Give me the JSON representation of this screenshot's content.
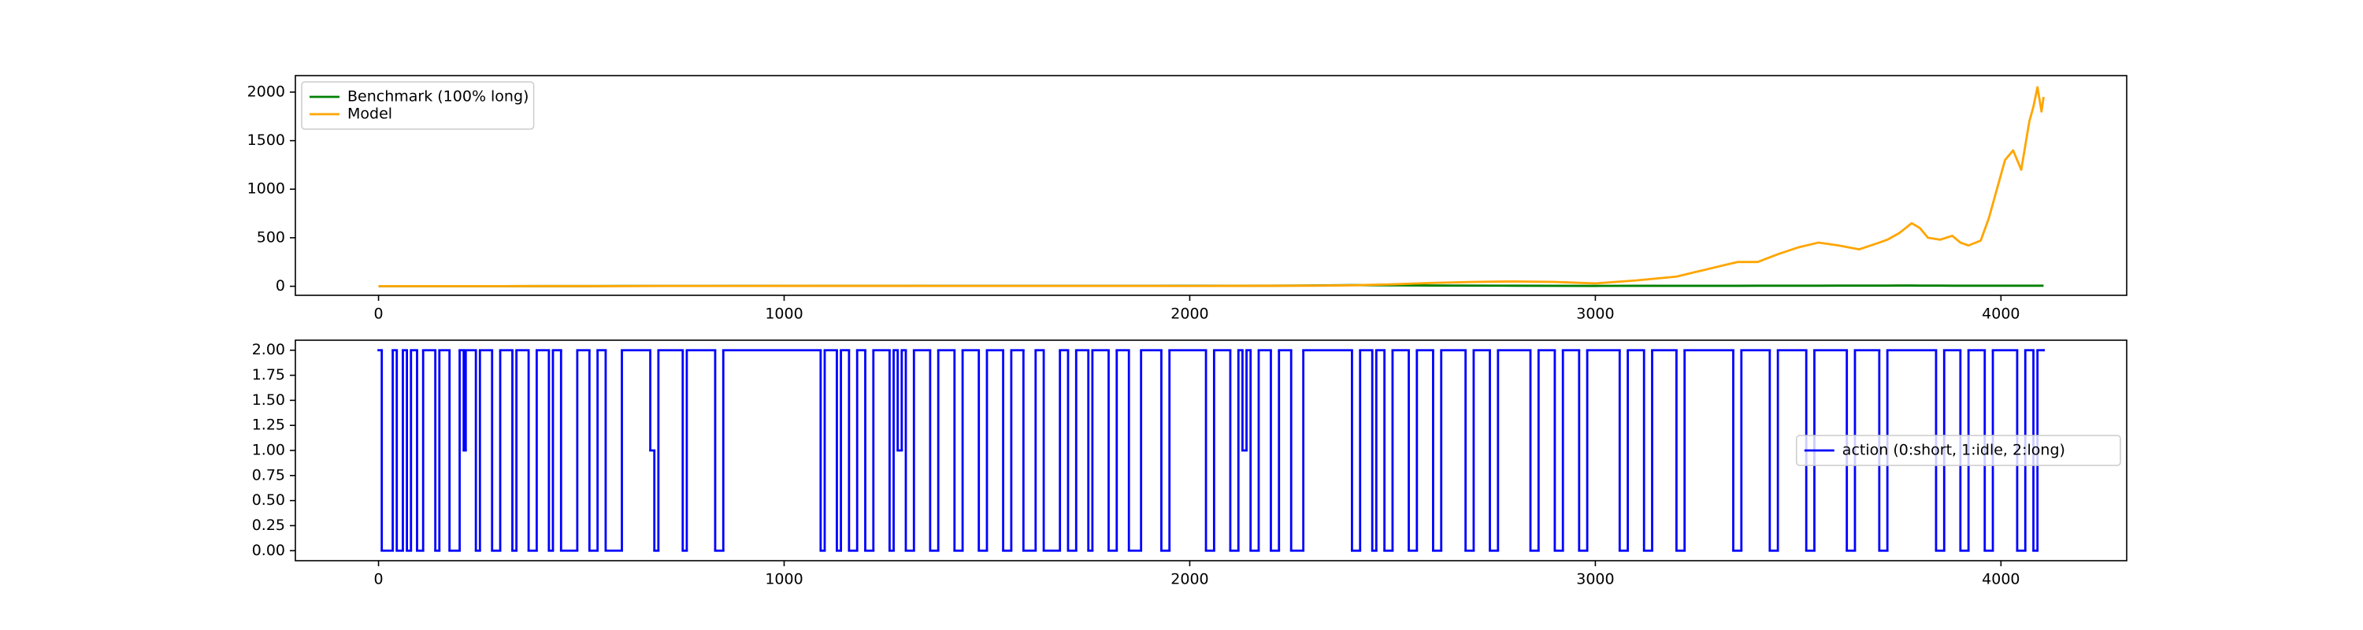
{
  "chart_data": [
    {
      "type": "line",
      "x": [
        0,
        100,
        200,
        300,
        400,
        500,
        600,
        700,
        800,
        900,
        1000,
        1100,
        1200,
        1300,
        1400,
        1500,
        1600,
        1700,
        1800,
        1900,
        2000,
        2100,
        2200,
        2300,
        2400,
        2500,
        2600,
        2700,
        2800,
        2900,
        3000,
        3100,
        3200,
        3250,
        3300,
        3350,
        3400,
        3450,
        3500,
        3550,
        3600,
        3650,
        3700,
        3720,
        3750,
        3780,
        3800,
        3820,
        3850,
        3880,
        3900,
        3920,
        3950,
        3970,
        3990,
        4010,
        4030,
        4050,
        4060,
        4070,
        4080,
        4090,
        4100,
        4105
      ],
      "series": [
        {
          "name": "Benchmark (100% long)",
          "color": "#008000",
          "values": [
            1,
            1,
            1,
            1,
            2,
            2,
            3,
            3,
            3,
            4,
            4,
            5,
            5,
            5,
            4,
            4,
            4,
            4,
            4,
            4,
            5,
            5,
            6,
            8,
            12,
            10,
            8,
            7,
            6,
            5,
            4,
            5,
            5,
            5,
            5,
            5,
            6,
            6,
            6,
            6,
            7,
            7,
            7,
            7,
            8,
            8,
            7,
            7,
            7,
            6,
            6,
            6,
            6,
            6,
            6,
            6,
            6,
            6,
            6,
            6,
            6,
            6,
            6,
            6
          ]
        },
        {
          "name": "Model",
          "color": "#ffa500",
          "values": [
            1,
            1,
            1,
            1,
            2,
            2,
            2,
            3,
            3,
            3,
            4,
            4,
            4,
            4,
            3,
            3,
            3,
            3,
            3,
            3,
            3,
            4,
            5,
            6,
            10,
            20,
            35,
            45,
            50,
            45,
            30,
            60,
            100,
            150,
            200,
            250,
            250,
            330,
            400,
            450,
            420,
            380,
            450,
            480,
            550,
            650,
            600,
            500,
            480,
            520,
            450,
            420,
            470,
            700,
            1000,
            1300,
            1400,
            1200,
            1450,
            1700,
            1850,
            2050,
            1800,
            1950
          ]
        }
      ],
      "xlim": [
        -205,
        4310
      ],
      "xticks": [
        0,
        1000,
        2000,
        3000,
        4000
      ],
      "ylim": [
        -93,
        2170
      ],
      "yticks": [
        0,
        500,
        1000,
        1500,
        2000
      ],
      "legend": "upper left"
    },
    {
      "type": "step",
      "x": [
        0,
        8,
        35,
        45,
        60,
        70,
        80,
        95,
        110,
        140,
        150,
        175,
        200,
        210,
        215,
        240,
        250,
        280,
        300,
        330,
        340,
        370,
        390,
        420,
        430,
        450,
        490,
        520,
        540,
        560,
        600,
        670,
        680,
        690,
        750,
        760,
        830,
        850,
        1090,
        1100,
        1130,
        1140,
        1160,
        1180,
        1200,
        1220,
        1260,
        1270,
        1280,
        1290,
        1300,
        1320,
        1360,
        1380,
        1420,
        1440,
        1480,
        1500,
        1540,
        1560,
        1590,
        1620,
        1640,
        1680,
        1700,
        1720,
        1750,
        1760,
        1800,
        1820,
        1850,
        1880,
        1930,
        1950,
        2040,
        2060,
        2100,
        2120,
        2130,
        2140,
        2150,
        2170,
        2200,
        2220,
        2250,
        2280,
        2400,
        2420,
        2450,
        2460,
        2480,
        2500,
        2540,
        2560,
        2600,
        2620,
        2680,
        2700,
        2740,
        2760,
        2840,
        2860,
        2900,
        2920,
        2960,
        2980,
        3060,
        3080,
        3120,
        3140,
        3200,
        3220,
        3340,
        3360,
        3430,
        3450,
        3520,
        3540,
        3620,
        3640,
        3700,
        3720,
        3840,
        3860,
        3900,
        3920,
        3960,
        3980,
        4040,
        4060,
        4080,
        4090,
        4105
      ],
      "series": [
        {
          "name": "action (0:short, 1:idle, 2:long)",
          "color": "#0000ff",
          "values": [
            2,
            0,
            2,
            0,
            2,
            0,
            2,
            0,
            2,
            0,
            2,
            0,
            2,
            1,
            2,
            0,
            2,
            0,
            2,
            0,
            2,
            0,
            2,
            0,
            2,
            0,
            2,
            0,
            2,
            0,
            2,
            1,
            0,
            2,
            0,
            2,
            0,
            2,
            0,
            2,
            0,
            2,
            0,
            2,
            0,
            2,
            0,
            2,
            1,
            2,
            0,
            2,
            0,
            2,
            0,
            2,
            0,
            2,
            0,
            2,
            0,
            2,
            0,
            2,
            0,
            2,
            0,
            2,
            0,
            2,
            0,
            2,
            0,
            2,
            0,
            2,
            0,
            2,
            1,
            2,
            0,
            2,
            0,
            2,
            0,
            2,
            0,
            2,
            0,
            2,
            0,
            2,
            0,
            2,
            0,
            2,
            0,
            2,
            0,
            2,
            0,
            2,
            0,
            2,
            0,
            2,
            0,
            2,
            0,
            2,
            0,
            2,
            0,
            2,
            0,
            2,
            0,
            2,
            0,
            2,
            0,
            2,
            0,
            2,
            0,
            2,
            0,
            2,
            0,
            2,
            0,
            2,
            2
          ]
        }
      ],
      "xlim": [
        -205,
        4310
      ],
      "xticks": [
        0,
        1000,
        2000,
        3000,
        4000
      ],
      "ylim": [
        -0.1,
        2.1
      ],
      "yticks": [
        {
          "value": 0,
          "label": "0.00"
        },
        {
          "value": 0.25,
          "label": "0.25"
        },
        {
          "value": 0.5,
          "label": "0.50"
        },
        {
          "value": 0.75,
          "label": "0.75"
        },
        {
          "value": 1,
          "label": "1.00"
        },
        {
          "value": 1.25,
          "label": "1.25"
        },
        {
          "value": 1.5,
          "label": "1.50"
        },
        {
          "value": 1.75,
          "label": "1.75"
        },
        {
          "value": 2,
          "label": "2.00"
        }
      ],
      "legend": "center right"
    }
  ]
}
